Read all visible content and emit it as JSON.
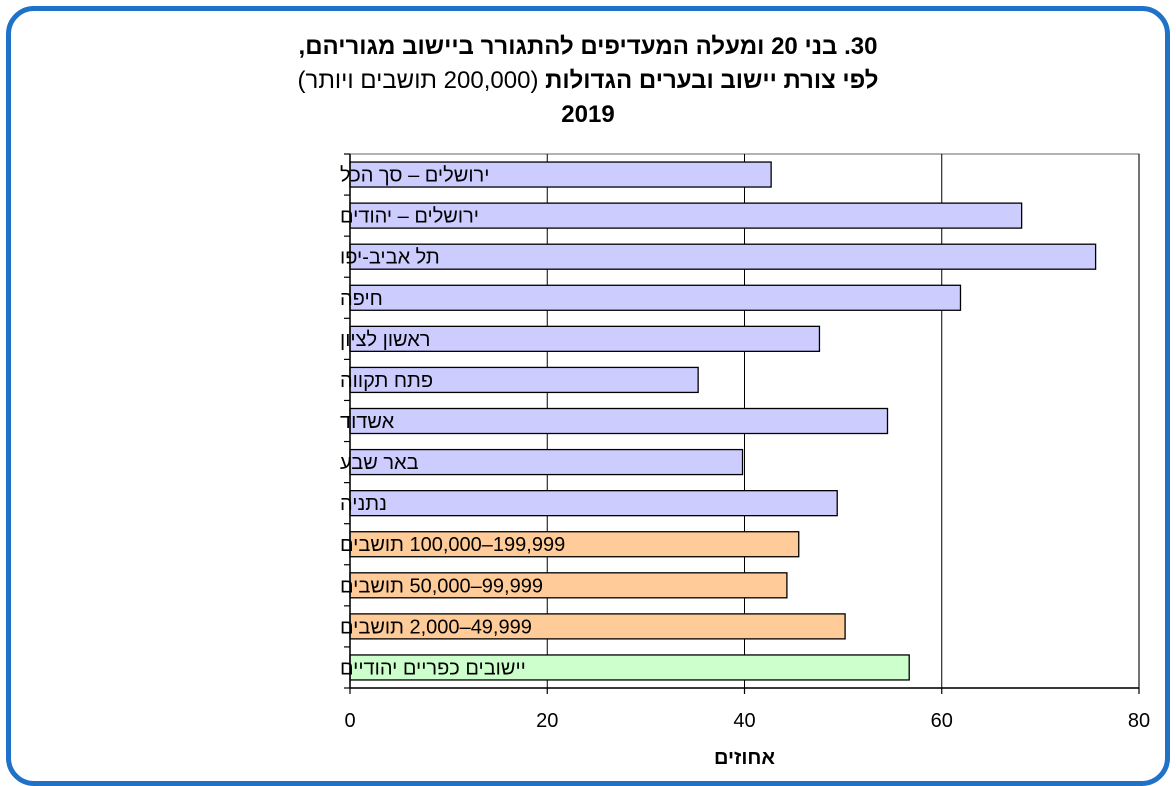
{
  "colors": {
    "frame": "#1f72c8",
    "cities": "#ccccff",
    "localities": "#ffcc99",
    "rural": "#ccffcc",
    "bar_stroke": "#000000",
    "gridline": "#000000",
    "plot_border": "#808080"
  },
  "title": {
    "line1": "30. בני 20 ומעלה המעדיפים להתגורר ביישוב מגוריהם,",
    "line2_bold": "לפי צורת יישוב ובערים הגדולות",
    "line2_normal": "(200,000 תושבים ויותר)",
    "line3": "2019"
  },
  "chart_data": {
    "type": "bar",
    "orientation": "horizontal",
    "title": "30. בני 20 ומעלה המעדיפים להתגורר ביישוב מגוריהם, לפי צורת יישוב ובערים הגדולות (200,000 תושבים ויותר) 2019",
    "xlabel": "אחוזים",
    "ylabel": "",
    "xlim": [
      0,
      80
    ],
    "xticks": [
      0,
      20,
      40,
      60,
      80
    ],
    "grid": "vertical major gridlines",
    "categories": [
      "ירושלים – סך הכל",
      "ירושלים – יהודים",
      "תל אביב-יפו",
      "חיפה",
      "ראשון לציון",
      "פתח תקווה",
      "אשדוד",
      "באר שבע",
      "נתניה",
      "199,999–100,000 תושבים",
      "99,999–50,000 תושבים",
      "49,999–2,000 תושבים",
      "יישובים כפריים יהודיים"
    ],
    "values": [
      42.7,
      68.1,
      75.6,
      61.9,
      47.6,
      35.3,
      54.5,
      39.8,
      49.4,
      45.5,
      44.3,
      50.2,
      56.7
    ],
    "groups": [
      "cities",
      "cities",
      "cities",
      "cities",
      "cities",
      "cities",
      "cities",
      "cities",
      "cities",
      "localities",
      "localities",
      "localities",
      "rural"
    ]
  }
}
